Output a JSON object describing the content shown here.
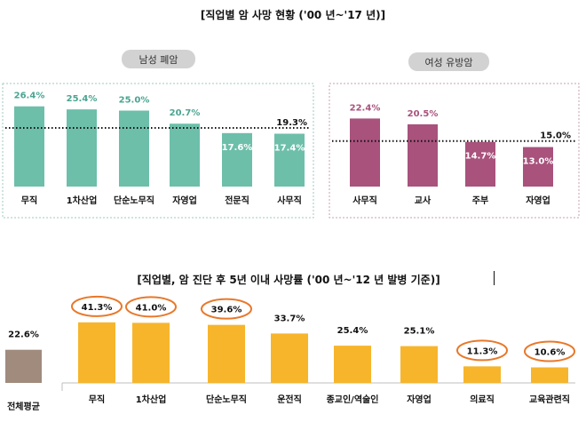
{
  "chart_data": [
    {
      "id": "male_lung",
      "type": "bar",
      "title": "[직업별 암 사망 현황 ('00 년~'17 년)]",
      "subtitle": "남성 폐암",
      "categories": [
        "무직",
        "1차산업",
        "단순노무직",
        "자영업",
        "전문직",
        "사무직"
      ],
      "values": [
        26.4,
        25.4,
        25.0,
        20.7,
        17.6,
        17.4
      ],
      "value_labels": [
        "26.4%",
        "25.4%",
        "25.0%",
        "20.7%",
        "17.6%",
        "17.4%"
      ],
      "reference_line": {
        "value": 19.3,
        "label": "19.3%",
        "style": "dotted"
      },
      "ylim": [
        0,
        30
      ],
      "color": "#6dbfaa",
      "label_color": "#4aa591"
    },
    {
      "id": "female_breast",
      "type": "bar",
      "subtitle": "여성 유방암",
      "categories": [
        "사무직",
        "교사",
        "주부",
        "자영업"
      ],
      "values": [
        22.4,
        20.5,
        14.7,
        13.0
      ],
      "value_labels": [
        "22.4%",
        "20.5%",
        "14.7%",
        "13.0%"
      ],
      "reference_line": {
        "value": 15.0,
        "label": "15.0%",
        "style": "dotted"
      },
      "ylim": [
        0,
        30
      ],
      "color": "#a8527c",
      "label_color": "#a8527c"
    },
    {
      "id": "five_year_mortality",
      "type": "bar",
      "title": "[직업별, 암 진단 후 5년 이내 사망률 ('00 년~'12 년 발병 기준)]",
      "categories": [
        "무직",
        "1차산업",
        "단순노무직",
        "운전직",
        "종교인/역술인",
        "자영업",
        "의료직",
        "교육관련직"
      ],
      "values": [
        41.3,
        41.0,
        39.6,
        33.7,
        25.4,
        25.1,
        11.3,
        10.6
      ],
      "value_labels": [
        "41.3%",
        "41.0%",
        "39.6%",
        "33.7%",
        "25.4%",
        "25.1%",
        "11.3%",
        "10.6%"
      ],
      "circled": [
        "무직",
        "1차산업",
        "단순노무직",
        "의료직",
        "교육관련직"
      ],
      "overall_average": {
        "label": "전체평균",
        "value": 22.6,
        "value_label": "22.6%",
        "color": "#a08b7d"
      },
      "ylim": [
        0,
        45
      ],
      "color": "#f7b52c",
      "circle_color": "#e8782a"
    }
  ]
}
